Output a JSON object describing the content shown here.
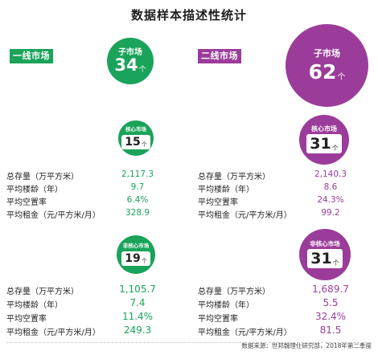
{
  "title": "数据样本描述性统计",
  "source": "数据来源：世邦魏理仕研究部，2018年第二季度",
  "colors": {
    "tier1": "#1aa35a",
    "tier2": "#9b3c9a"
  },
  "chart_data": {
    "type": "table",
    "metric_labels": [
      "总存量（万平方米）",
      "平均楼龄（年）",
      "平均空置率",
      "平均租金（元/平方米/月）"
    ],
    "unit": "个",
    "groups": [
      {
        "name": "一线市场",
        "submarkets": {
          "label": "子市场",
          "count": "34"
        },
        "core": {
          "label": "核心市场",
          "count": "15",
          "values": [
            "2,117.3",
            "9.7",
            "6.4%",
            "328.9"
          ]
        },
        "noncore": {
          "label": "非核心市场",
          "count": "19",
          "values": [
            "1,105.7",
            "7.4",
            "11.4%",
            "249.3"
          ]
        }
      },
      {
        "name": "二线市场",
        "submarkets": {
          "label": "子市场",
          "count": "62"
        },
        "core": {
          "label": "核心市场",
          "count": "31",
          "values": [
            "2,140.3",
            "8.6",
            "24.3%",
            "99.2"
          ]
        },
        "noncore": {
          "label": "非核心市场",
          "count": "31",
          "values": [
            "1,689.7",
            "5.5",
            "32.4%",
            "81.5"
          ]
        }
      }
    ]
  }
}
